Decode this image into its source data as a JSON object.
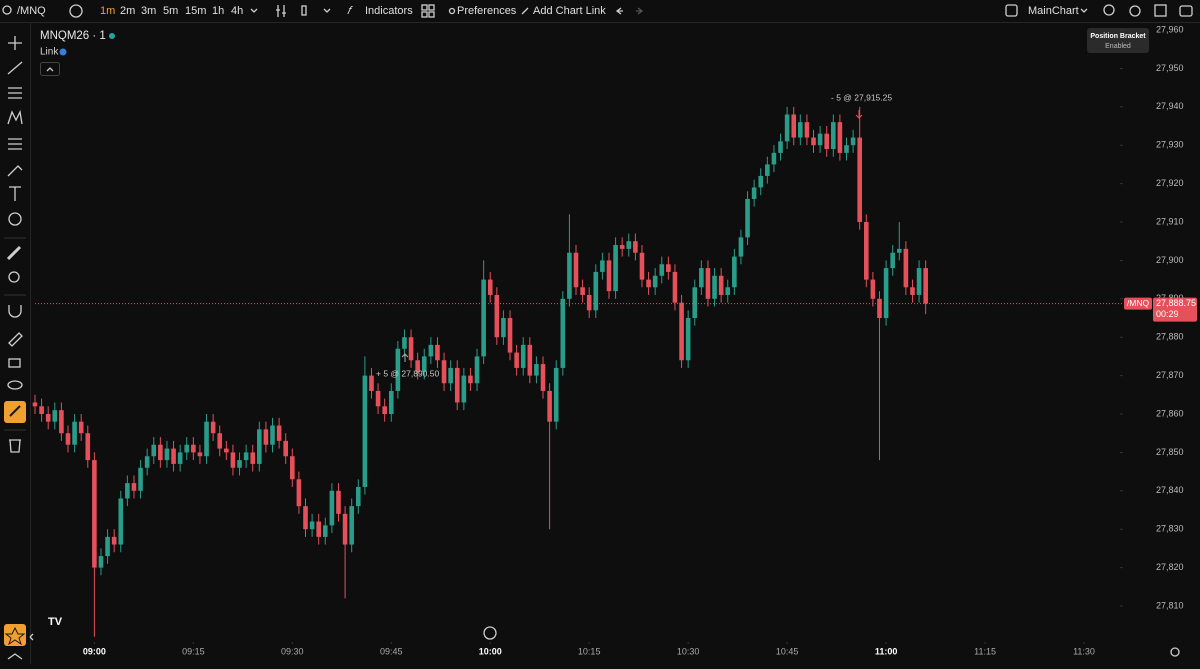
{
  "toolbar": {
    "symbol": "/MNQ",
    "timeframes": [
      "1m",
      "2m",
      "3m",
      "5m",
      "15m",
      "1h",
      "4h"
    ],
    "indicators": "Indicators",
    "preferences": "Preferences",
    "add_chart_link": "Add Chart Link",
    "layout": "MainChart"
  },
  "tooltip": {
    "title": "Position Bracket",
    "status": "Enabled"
  },
  "legend": {
    "instrument": "MNQM26 · 1",
    "link": "Link"
  },
  "chart_data": {
    "type": "candlestick",
    "x": [
      "08:51",
      "08:52",
      "08:53",
      "08:54",
      "08:55",
      "08:56",
      "08:57",
      "08:58",
      "08:59",
      "09:00",
      "09:01",
      "09:02",
      "09:03",
      "09:04",
      "09:05",
      "09:06",
      "09:07",
      "09:08",
      "09:09",
      "09:10",
      "09:11",
      "09:12",
      "09:13",
      "09:14",
      "09:15",
      "09:16",
      "09:17",
      "09:18",
      "09:19",
      "09:20",
      "09:21",
      "09:22",
      "09:23",
      "09:24",
      "09:25",
      "09:26",
      "09:27",
      "09:28",
      "09:29",
      "09:30",
      "09:31",
      "09:32",
      "09:33",
      "09:34",
      "09:35",
      "09:36",
      "09:37",
      "09:38",
      "09:39",
      "09:40",
      "09:41",
      "09:42",
      "09:43",
      "09:44",
      "09:45",
      "09:46",
      "09:47",
      "09:48",
      "09:49",
      "09:50",
      "09:51",
      "09:52",
      "09:53",
      "09:54",
      "09:55",
      "09:56",
      "09:57",
      "09:58",
      "09:59",
      "10:00",
      "10:01",
      "10:02",
      "10:03",
      "10:04",
      "10:05",
      "10:06",
      "10:07",
      "10:08",
      "10:09",
      "10:10",
      "10:11",
      "10:12",
      "10:13",
      "10:14",
      "10:15",
      "10:16",
      "10:17",
      "10:18",
      "10:19",
      "10:20",
      "10:21",
      "10:22",
      "10:23",
      "10:24",
      "10:25",
      "10:26",
      "10:27",
      "10:28",
      "10:29",
      "10:30",
      "10:31",
      "10:32",
      "10:33",
      "10:34",
      "10:35",
      "10:36",
      "10:37",
      "10:38",
      "10:39",
      "10:40",
      "10:41",
      "10:42",
      "10:43",
      "10:44",
      "10:45",
      "10:46",
      "10:47",
      "10:48",
      "10:49",
      "10:50",
      "10:51",
      "10:52",
      "10:53",
      "10:54",
      "10:55",
      "10:56",
      "10:57",
      "10:58",
      "10:59",
      "11:00",
      "11:01",
      "11:02",
      "11:03",
      "11:04",
      "11:05",
      "11:06"
    ],
    "open": [
      27863,
      27862,
      27860,
      27858,
      27861,
      27855,
      27852,
      27858,
      27855,
      27848,
      27820,
      27823,
      27828,
      27826,
      27838,
      27842,
      27840,
      27846,
      27849,
      27852,
      27848,
      27851,
      27847,
      27850,
      27852,
      27850,
      27849,
      27858,
      27855,
      27851,
      27850,
      27846,
      27848,
      27850,
      27847,
      27856,
      27852,
      27857,
      27853,
      27849,
      27843,
      27836,
      27830,
      27832,
      27828,
      27831,
      27840,
      27834,
      27826,
      27836,
      27841,
      27870,
      27866,
      27862,
      27860,
      27866,
      27877,
      27880,
      27874,
      27871,
      27875,
      27878,
      27874,
      27868,
      27872,
      27863,
      27870,
      27868,
      27875,
      27895,
      27891,
      27880,
      27885,
      27876,
      27872,
      27878,
      27870,
      27873,
      27866,
      27858,
      27872,
      27890,
      27902,
      27893,
      27891,
      27887,
      27897,
      27900,
      27892,
      27904,
      27903,
      27905,
      27902,
      27895,
      27893,
      27896,
      27899,
      27897,
      27889,
      27874,
      27885,
      27893,
      27898,
      27890,
      27896,
      27891,
      27893,
      27901,
      27906,
      27916,
      27919,
      27922,
      27925,
      27928,
      27931,
      27938,
      27932,
      27936,
      27932,
      27930,
      27933,
      27929,
      27936,
      27928,
      27930,
      27932,
      27910,
      27895,
      27890,
      27885,
      27898,
      27902,
      27903,
      27893,
      27891,
      27898
    ],
    "high": [
      27865,
      27864,
      27862,
      27863,
      27863,
      27857,
      27860,
      27860,
      27857,
      27850,
      27825,
      27830,
      27830,
      27840,
      27844,
      27844,
      27848,
      27851,
      27854,
      27854,
      27853,
      27853,
      27852,
      27854,
      27854,
      27852,
      27860,
      27860,
      27857,
      27853,
      27852,
      27850,
      27852,
      27852,
      27858,
      27858,
      27859,
      27859,
      27855,
      27851,
      27845,
      27838,
      27834,
      27834,
      27833,
      27842,
      27842,
      27836,
      27838,
      27843,
      27875,
      27872,
      27868,
      27864,
      27868,
      27879,
      27882,
      27882,
      27876,
      27877,
      27880,
      27880,
      27876,
      27874,
      27874,
      27872,
      27872,
      27877,
      27900,
      27897,
      27893,
      27887,
      27887,
      27878,
      27880,
      27880,
      27875,
      27875,
      27868,
      27874,
      27892,
      27912,
      27904,
      27895,
      27893,
      27899,
      27902,
      27902,
      27906,
      27906,
      27907,
      27907,
      27904,
      27897,
      27898,
      27901,
      27901,
      27899,
      27891,
      27887,
      27895,
      27900,
      27900,
      27898,
      27898,
      27895,
      27903,
      27908,
      27918,
      27921,
      27924,
      27927,
      27930,
      27933,
      27940,
      27940,
      27938,
      27938,
      27934,
      27935,
      27935,
      27938,
      27938,
      27932,
      27934,
      27940,
      27912,
      27897,
      27892,
      27900,
      27904,
      27910,
      27905,
      27895,
      27900,
      27900
    ],
    "low": [
      27860,
      27858,
      27856,
      27856,
      27853,
      27850,
      27850,
      27853,
      27846,
      27802,
      27818,
      27821,
      27824,
      27824,
      27836,
      27838,
      27838,
      27844,
      27847,
      27846,
      27846,
      27845,
      27845,
      27848,
      27848,
      27847,
      27847,
      27853,
      27849,
      27848,
      27844,
      27844,
      27846,
      27845,
      27845,
      27850,
      27850,
      27851,
      27847,
      27841,
      27834,
      27828,
      27828,
      27826,
      27826,
      27829,
      27832,
      27812,
      27824,
      27834,
      27839,
      27864,
      27860,
      27858,
      27858,
      27864,
      27875,
      27872,
      27869,
      27869,
      27873,
      27872,
      27866,
      27866,
      27861,
      27861,
      27866,
      27866,
      27873,
      27889,
      27878,
      27878,
      27874,
      27870,
      27870,
      27868,
      27868,
      27864,
      27830,
      27856,
      27870,
      27888,
      27891,
      27889,
      27885,
      27885,
      27895,
      27890,
      27890,
      27901,
      27901,
      27900,
      27893,
      27891,
      27891,
      27894,
      27895,
      27887,
      27872,
      27872,
      27883,
      27891,
      27888,
      27888,
      27889,
      27889,
      27891,
      27899,
      27904,
      27914,
      27917,
      27920,
      27923,
      27926,
      27929,
      27930,
      27930,
      27930,
      27928,
      27928,
      27927,
      27927,
      27926,
      27926,
      27928,
      27908,
      27893,
      27888,
      27848,
      27883,
      27896,
      27900,
      27891,
      27889,
      27889,
      27886
    ],
    "close": [
      27862,
      27860,
      27858,
      27861,
      27855,
      27852,
      27858,
      27855,
      27848,
      27820,
      27823,
      27828,
      27826,
      27838,
      27842,
      27840,
      27846,
      27849,
      27852,
      27848,
      27851,
      27847,
      27850,
      27852,
      27850,
      27849,
      27858,
      27855,
      27851,
      27850,
      27846,
      27848,
      27850,
      27847,
      27856,
      27852,
      27857,
      27853,
      27849,
      27843,
      27836,
      27830,
      27832,
      27828,
      27831,
      27840,
      27834,
      27826,
      27836,
      27841,
      27870,
      27866,
      27862,
      27860,
      27866,
      27877,
      27880,
      27874,
      27871,
      27875,
      27878,
      27874,
      27868,
      27872,
      27863,
      27870,
      27868,
      27875,
      27895,
      27891,
      27880,
      27885,
      27876,
      27872,
      27878,
      27870,
      27873,
      27866,
      27858,
      27872,
      27890,
      27902,
      27893,
      27891,
      27887,
      27897,
      27900,
      27892,
      27904,
      27903,
      27905,
      27902,
      27895,
      27893,
      27896,
      27899,
      27897,
      27889,
      27874,
      27885,
      27893,
      27898,
      27890,
      27896,
      27891,
      27893,
      27901,
      27906,
      27916,
      27919,
      27922,
      27925,
      27928,
      27931,
      27938,
      27932,
      27936,
      27932,
      27930,
      27933,
      27929,
      27936,
      27928,
      27930,
      27932,
      27910,
      27895,
      27890,
      27885,
      27898,
      27902,
      27903,
      27893,
      27891,
      27898,
      27888.75
    ],
    "up_color": "#2a9d8a",
    "down_color": "#e5505a",
    "xlim": [
      "08:51",
      "11:35"
    ],
    "xticks": [
      "09:00",
      "09:15",
      "09:30",
      "09:45",
      "10:00",
      "10:15",
      "10:30",
      "10:45",
      "11:00",
      "11:15",
      "11:30"
    ],
    "ylim": [
      27810,
      27960
    ],
    "yticks": [
      {
        "value": 27810,
        "label": "27,810"
      },
      {
        "value": 27820,
        "label": "27,820"
      },
      {
        "value": 27830,
        "label": "27,830"
      },
      {
        "value": 27840,
        "label": "27,840"
      },
      {
        "value": 27850,
        "label": "27,850"
      },
      {
        "value": 27860,
        "label": "27,860"
      },
      {
        "value": 27870,
        "label": "27,870"
      },
      {
        "value": 27880,
        "label": "27,880"
      },
      {
        "value": 27890,
        "label": "27,890"
      },
      {
        "value": 27900,
        "label": "27,900"
      },
      {
        "value": 27910,
        "label": "27,910"
      },
      {
        "value": 27920,
        "label": "27,920"
      },
      {
        "value": 27930,
        "label": "27,930"
      },
      {
        "value": 27940,
        "label": "27,940"
      },
      {
        "value": 27950,
        "label": "27,950"
      },
      {
        "value": 27960,
        "label": "27,960"
      }
    ],
    "grid": false,
    "price_tag": {
      "symbol": "/MNQ",
      "value": 27888.75,
      "label": "27,888.75",
      "countdown": "00:29"
    },
    "annotations": [
      "+ 5 @ 27,890.50",
      "- 5 @ 27,915.25"
    ]
  }
}
